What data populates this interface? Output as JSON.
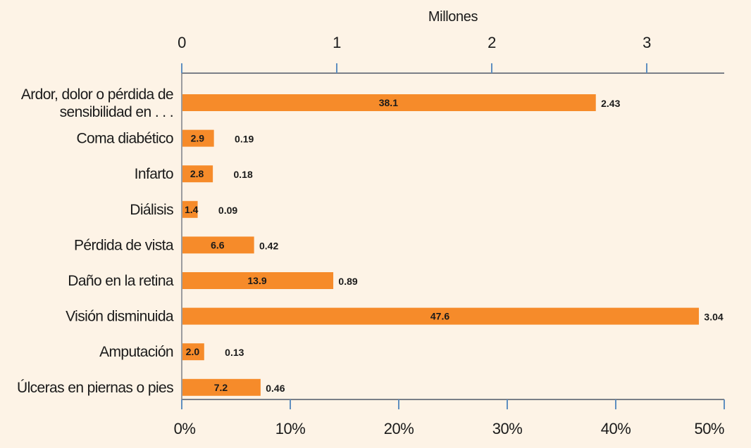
{
  "chart_data": {
    "type": "bar",
    "orientation": "horizontal",
    "categories": [
      [
        "Ardor, dolor o pérdida de",
        "sensibilidad en . . ."
      ],
      [
        "Coma diabético"
      ],
      [
        "Infarto"
      ],
      [
        "Diálisis"
      ],
      [
        "Pérdida de vista"
      ],
      [
        "Daño en la retina"
      ],
      [
        "Visión disminuida"
      ],
      [
        "Amputación"
      ],
      [
        "Úlceras en piernas o pies"
      ]
    ],
    "percent_labels": [
      "38.1",
      "2.9",
      "2.8",
      "1.4",
      "6.6",
      "13.9",
      "47.6",
      "2.0",
      "7.2"
    ],
    "million_labels": [
      "2.43",
      "0.19",
      "0.18",
      "0.09",
      "0.42",
      "0.89",
      "3.04",
      "0.13",
      "0.46"
    ],
    "series": [
      {
        "values": [
          38.1,
          2.9,
          2.8,
          1.4,
          6.6,
          13.9,
          47.6,
          2.0,
          7.2
        ]
      }
    ],
    "x_bottom": {
      "ticks": [
        "0%",
        "10%",
        "20%",
        "30%",
        "40%",
        "50%"
      ],
      "range": [
        0,
        50
      ]
    },
    "x_top": {
      "title": "Millones",
      "ticks": [
        "0",
        "1",
        "2",
        "3"
      ],
      "range": [
        0,
        3.49
      ]
    },
    "bar_color": "#f68b2a",
    "grid": false
  }
}
